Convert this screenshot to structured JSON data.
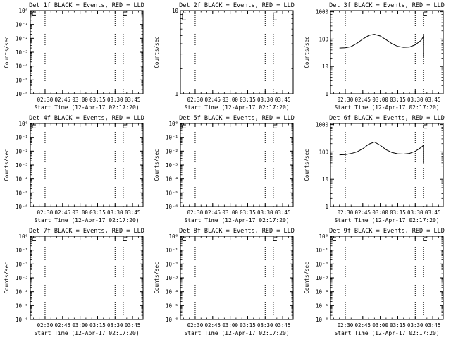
{
  "chart_data": [
    {
      "type": "line",
      "title": "Det 1f BLACK = Events, RED = LLD",
      "ylabel": "Counts/sec",
      "xlabel": "Start Time (12-Apr-17 02:17:20)",
      "y_scale": "log",
      "ylim": [
        1e-06,
        1
      ],
      "y_ticks": [
        {
          "v": 1,
          "t": "10⁰"
        },
        {
          "v": 0.1,
          "t": "10⁻¹"
        },
        {
          "v": 0.01,
          "t": "10⁻²"
        },
        {
          "v": 0.001,
          "t": "10⁻³"
        },
        {
          "v": 0.0001,
          "t": "10⁻⁴"
        },
        {
          "v": 1e-05,
          "t": "10⁻⁵"
        },
        {
          "v": 1e-06,
          "t": "10⁻⁶"
        }
      ],
      "x_range": [
        "02:17:20",
        "03:54:00"
      ],
      "x_ticks": [
        "02:30",
        "02:45",
        "03:00",
        "03:15",
        "03:30",
        "03:45"
      ],
      "vlines": [
        "02:30",
        "03:30",
        "03:37"
      ],
      "series": [],
      "markers": [
        {
          "x": "02:17:20",
          "y": 0.85
        },
        {
          "x": "03:37",
          "y": 0.85
        }
      ]
    },
    {
      "type": "line",
      "title": "Det 2f BLACK = Events, RED = LLD",
      "ylabel": "Counts/sec",
      "xlabel": "Start Time (12-Apr-17 02:17:20)",
      "y_scale": "log",
      "ylim": [
        1,
        10
      ],
      "y_ticks": [
        {
          "v": 1,
          "t": "1"
        },
        {
          "v": 10,
          "t": "10"
        }
      ],
      "x_range": [
        "02:17:20",
        "03:54:00"
      ],
      "x_ticks": [
        "02:30",
        "02:45",
        "03:00",
        "03:15",
        "03:30",
        "03:45"
      ],
      "vlines": [
        "02:30",
        "03:30",
        "03:37"
      ],
      "series": [],
      "markers": [
        {
          "x": "02:17:20",
          "y": 8.5
        },
        {
          "x": "03:37",
          "y": 8.5
        }
      ]
    },
    {
      "type": "line",
      "title": "Det 3f BLACK = Events, RED = LLD",
      "ylabel": "Counts/sec",
      "xlabel": "Start Time (12-Apr-17 02:17:20)",
      "y_scale": "log",
      "ylim": [
        1,
        1100
      ],
      "y_ticks": [
        {
          "v": 1,
          "t": "1"
        },
        {
          "v": 10,
          "t": "10"
        },
        {
          "v": 100,
          "t": "100"
        },
        {
          "v": 1000,
          "t": "1000"
        }
      ],
      "x_range": [
        "02:17:20",
        "03:54:00"
      ],
      "x_ticks": [
        "02:30",
        "02:45",
        "03:00",
        "03:15",
        "03:30",
        "03:45"
      ],
      "vlines": [
        "02:30",
        "03:30",
        "03:37"
      ],
      "series": [
        {
          "points": [
            [
              "02:25",
              47
            ],
            [
              "02:30",
              48
            ],
            [
              "02:35",
              53
            ],
            [
              "02:40",
              70
            ],
            [
              "02:45",
              100
            ],
            [
              "02:50",
              135
            ],
            [
              "02:55",
              150
            ],
            [
              "03:00",
              130
            ],
            [
              "03:05",
              95
            ],
            [
              "03:10",
              68
            ],
            [
              "03:15",
              54
            ],
            [
              "03:20",
              50
            ],
            [
              "03:25",
              51
            ],
            [
              "03:30",
              62
            ],
            [
              "03:35",
              90
            ],
            [
              "03:37",
              125
            ]
          ]
        }
      ],
      "spike": {
        "x": "03:37",
        "from": 22,
        "to": 140
      },
      "markers": [
        {
          "x": "03:37",
          "y": 1000
        }
      ]
    },
    {
      "type": "line",
      "title": "Det 4f BLACK = Events, RED = LLD",
      "ylabel": "Counts/sec",
      "xlabel": "Start Time (12-Apr-17 02:17:20)",
      "y_scale": "log",
      "ylim": [
        1e-06,
        1
      ],
      "y_ticks": [
        {
          "v": 1,
          "t": "10⁰"
        },
        {
          "v": 0.1,
          "t": "10⁻¹"
        },
        {
          "v": 0.01,
          "t": "10⁻²"
        },
        {
          "v": 0.001,
          "t": "10⁻³"
        },
        {
          "v": 0.0001,
          "t": "10⁻⁴"
        },
        {
          "v": 1e-05,
          "t": "10⁻⁵"
        },
        {
          "v": 1e-06,
          "t": "10⁻⁶"
        }
      ],
      "x_range": [
        "02:17:20",
        "03:54:00"
      ],
      "x_ticks": [
        "02:30",
        "02:45",
        "03:00",
        "03:15",
        "03:30",
        "03:45"
      ],
      "vlines": [
        "02:30",
        "03:30",
        "03:37"
      ],
      "series": [],
      "markers": [
        {
          "x": "02:17:20",
          "y": 0.85
        },
        {
          "x": "03:37",
          "y": 0.85
        }
      ]
    },
    {
      "type": "line",
      "title": "Det 5f BLACK = Events, RED = LLD",
      "ylabel": "Counts/sec",
      "xlabel": "Start Time (12-Apr-17 02:17:20)",
      "y_scale": "log",
      "ylim": [
        1e-06,
        1
      ],
      "y_ticks": [
        {
          "v": 1,
          "t": "10⁰"
        },
        {
          "v": 0.1,
          "t": "10⁻¹"
        },
        {
          "v": 0.01,
          "t": "10⁻²"
        },
        {
          "v": 0.001,
          "t": "10⁻³"
        },
        {
          "v": 0.0001,
          "t": "10⁻⁴"
        },
        {
          "v": 1e-05,
          "t": "10⁻⁵"
        },
        {
          "v": 1e-06,
          "t": "10⁻⁶"
        }
      ],
      "x_range": [
        "02:17:20",
        "03:54:00"
      ],
      "x_ticks": [
        "02:30",
        "02:45",
        "03:00",
        "03:15",
        "03:30",
        "03:45"
      ],
      "vlines": [
        "02:30",
        "03:30",
        "03:37"
      ],
      "series": [],
      "markers": [
        {
          "x": "02:17:20",
          "y": 0.85
        },
        {
          "x": "03:37",
          "y": 0.85
        }
      ]
    },
    {
      "type": "line",
      "title": "Det 6f BLACK = Events, RED = LLD",
      "ylabel": "Counts/sec",
      "xlabel": "Start Time (12-Apr-17 02:17:20)",
      "y_scale": "log",
      "ylim": [
        1,
        1100
      ],
      "y_ticks": [
        {
          "v": 1,
          "t": "1"
        },
        {
          "v": 10,
          "t": "10"
        },
        {
          "v": 100,
          "t": "100"
        },
        {
          "v": 1000,
          "t": "1000"
        }
      ],
      "x_range": [
        "02:17:20",
        "03:54:00"
      ],
      "x_ticks": [
        "02:30",
        "02:45",
        "03:00",
        "03:15",
        "03:30",
        "03:45"
      ],
      "vlines": [
        "02:30",
        "03:30",
        "03:37"
      ],
      "series": [
        {
          "points": [
            [
              "02:25",
              78
            ],
            [
              "02:30",
              80
            ],
            [
              "02:35",
              87
            ],
            [
              "02:40",
              100
            ],
            [
              "02:45",
              130
            ],
            [
              "02:50",
              190
            ],
            [
              "02:55",
              230
            ],
            [
              "03:00",
              175
            ],
            [
              "03:05",
              120
            ],
            [
              "03:10",
              95
            ],
            [
              "03:15",
              85
            ],
            [
              "03:20",
              83
            ],
            [
              "03:25",
              88
            ],
            [
              "03:30",
              105
            ],
            [
              "03:35",
              145
            ],
            [
              "03:37",
              175
            ]
          ]
        }
      ],
      "spike": {
        "x": "03:37",
        "from": 38,
        "to": 180
      },
      "markers": [
        {
          "x": "03:37",
          "y": 1000
        }
      ]
    },
    {
      "type": "line",
      "title": "Det 7f BLACK = Events, RED = LLD",
      "ylabel": "Counts/sec",
      "xlabel": "Start Time (12-Apr-17 02:17:20)",
      "y_scale": "log",
      "ylim": [
        1e-06,
        1
      ],
      "y_ticks": [
        {
          "v": 1,
          "t": "10⁰"
        },
        {
          "v": 0.1,
          "t": "10⁻¹"
        },
        {
          "v": 0.01,
          "t": "10⁻²"
        },
        {
          "v": 0.001,
          "t": "10⁻³"
        },
        {
          "v": 0.0001,
          "t": "10⁻⁴"
        },
        {
          "v": 1e-05,
          "t": "10⁻⁵"
        },
        {
          "v": 1e-06,
          "t": "10⁻⁶"
        }
      ],
      "x_range": [
        "02:17:20",
        "03:54:00"
      ],
      "x_ticks": [
        "02:30",
        "02:45",
        "03:00",
        "03:15",
        "03:30",
        "03:45"
      ],
      "vlines": [
        "02:30",
        "03:30",
        "03:37"
      ],
      "series": [],
      "markers": [
        {
          "x": "02:17:20",
          "y": 0.85
        },
        {
          "x": "03:37",
          "y": 0.85
        }
      ]
    },
    {
      "type": "line",
      "title": "Det 8f BLACK = Events, RED = LLD",
      "ylabel": "Counts/sec",
      "xlabel": "Start Time (12-Apr-17 02:17:20)",
      "y_scale": "log",
      "ylim": [
        1e-06,
        1
      ],
      "y_ticks": [
        {
          "v": 1,
          "t": "10⁰"
        },
        {
          "v": 0.1,
          "t": "10⁻¹"
        },
        {
          "v": 0.01,
          "t": "10⁻²"
        },
        {
          "v": 0.001,
          "t": "10⁻³"
        },
        {
          "v": 0.0001,
          "t": "10⁻⁴"
        },
        {
          "v": 1e-05,
          "t": "10⁻⁵"
        },
        {
          "v": 1e-06,
          "t": "10⁻⁶"
        }
      ],
      "x_range": [
        "02:17:20",
        "03:54:00"
      ],
      "x_ticks": [
        "02:30",
        "02:45",
        "03:00",
        "03:15",
        "03:30",
        "03:45"
      ],
      "vlines": [
        "02:30",
        "03:30",
        "03:37"
      ],
      "series": [],
      "markers": [
        {
          "x": "02:17:20",
          "y": 0.85
        },
        {
          "x": "03:37",
          "y": 0.85
        }
      ]
    },
    {
      "type": "line",
      "title": "Det 9f BLACK = Events, RED = LLD",
      "ylabel": "Counts/sec",
      "xlabel": "Start Time (12-Apr-17 02:17:20)",
      "y_scale": "log",
      "ylim": [
        1e-06,
        1
      ],
      "y_ticks": [
        {
          "v": 1,
          "t": "10⁰"
        },
        {
          "v": 0.1,
          "t": "10⁻¹"
        },
        {
          "v": 0.01,
          "t": "10⁻²"
        },
        {
          "v": 0.001,
          "t": "10⁻³"
        },
        {
          "v": 0.0001,
          "t": "10⁻⁴"
        },
        {
          "v": 1e-05,
          "t": "10⁻⁵"
        },
        {
          "v": 1e-06,
          "t": "10⁻⁶"
        }
      ],
      "x_range": [
        "02:17:20",
        "03:54:00"
      ],
      "x_ticks": [
        "02:30",
        "02:45",
        "03:00",
        "03:15",
        "03:30",
        "03:45"
      ],
      "vlines": [
        "02:30",
        "03:30",
        "03:37"
      ],
      "series": [],
      "markers": [
        {
          "x": "02:17:20",
          "y": 0.85
        },
        {
          "x": "03:37",
          "y": 0.85
        }
      ]
    }
  ]
}
